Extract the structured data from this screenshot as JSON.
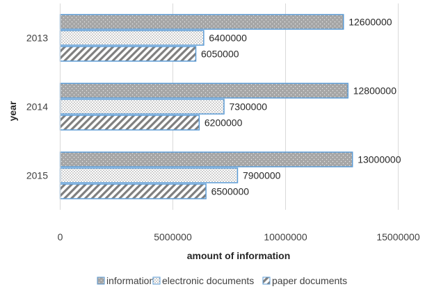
{
  "chart_data": {
    "type": "bar",
    "orientation": "horizontal",
    "categories": [
      "2013",
      "2014",
      "2015"
    ],
    "series": [
      {
        "name": "information",
        "values": [
          12600000,
          12800000,
          13000000
        ],
        "color": "#a6a6a6",
        "pattern": "dots-on-grey"
      },
      {
        "name": "electronic documents",
        "values": [
          6400000,
          7300000,
          7900000
        ],
        "color": "#ffffff",
        "pattern": "dots-on-white"
      },
      {
        "name": "paper documents",
        "values": [
          6050000,
          6200000,
          6500000
        ],
        "color": "#7f7f7f",
        "pattern": "diagonal-stripes"
      }
    ],
    "xlabel": "amount of information",
    "ylabel": "year",
    "xlim": [
      0,
      15000000
    ],
    "xticks": [
      "0",
      "5000000",
      "10000000",
      "15000000"
    ],
    "grid": "vertical",
    "legend_position": "bottom",
    "data_labels": true,
    "bar_border_color": "#5b9bd5"
  }
}
